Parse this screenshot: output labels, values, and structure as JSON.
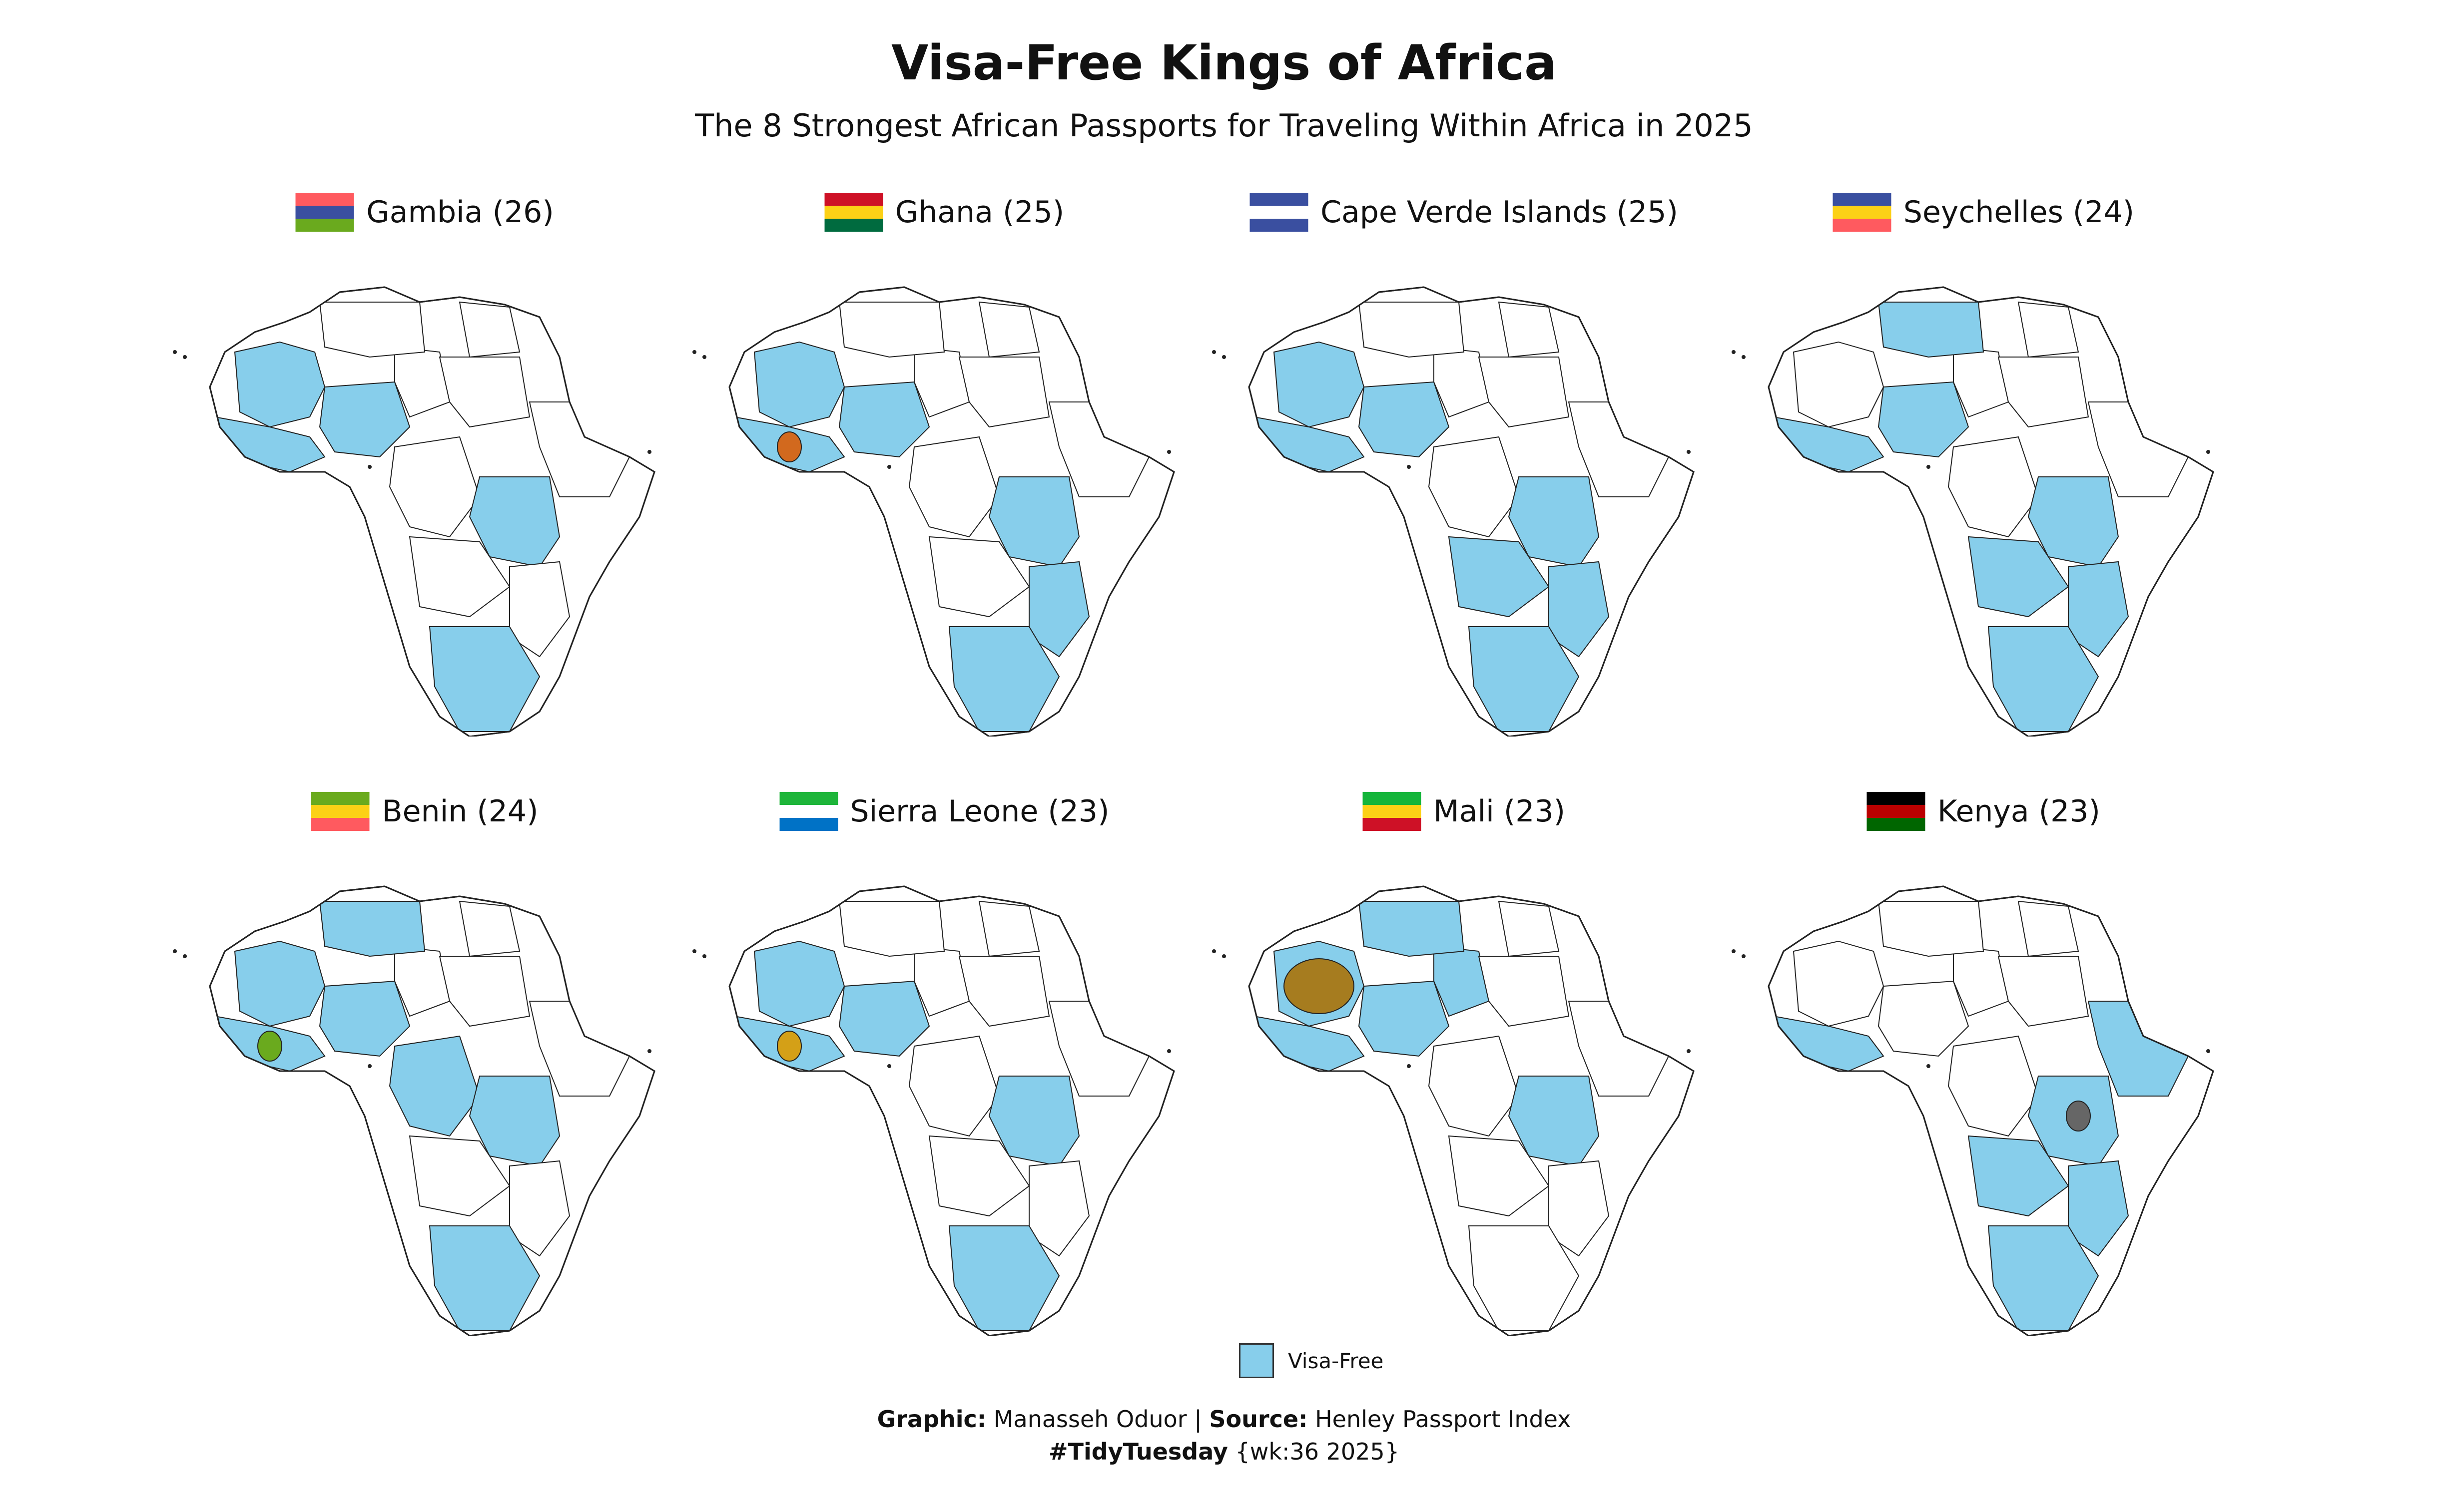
{
  "header": {
    "title": "Visa-Free Kings of Africa",
    "subtitle": "The 8 Strongest African Passports for Traveling Within Africa in 2025"
  },
  "colors": {
    "visa_free": "#87ceeb",
    "not_visa_free": "#ffffff",
    "border": "#222222"
  },
  "panels": [
    {
      "title": "Gambia (26)",
      "country": "Gambia",
      "count": 26,
      "home_color": "#87ceeb",
      "flag": [
        "#ff5a5f",
        "#3a4fa0",
        "#6aaa1e"
      ]
    },
    {
      "title": "Ghana (25)",
      "country": "Ghana",
      "count": 25,
      "home_color": "#d2691e",
      "flag": [
        "#ce1126",
        "#fcd116",
        "#006b3f"
      ]
    },
    {
      "title": "Cape Verde Islands (25)",
      "country": "Cape Verde Islands",
      "count": 25,
      "home_color": "#87ceeb",
      "flag": [
        "#3a4fa0",
        "#ffffff",
        "#3a4fa0"
      ]
    },
    {
      "title": "Seychelles (24)",
      "country": "Seychelles",
      "count": 24,
      "home_color": "#87ceeb",
      "flag": [
        "#3a4fa0",
        "#fcd116",
        "#ff5a5f"
      ]
    },
    {
      "title": "Benin (24)",
      "country": "Benin",
      "count": 24,
      "home_color": "#6aaa1e",
      "flag": [
        "#6aaa1e",
        "#fcd116",
        "#ff5a5f"
      ]
    },
    {
      "title": "Sierra Leone (23)",
      "country": "Sierra Leone",
      "count": 23,
      "home_color": "#d4a017",
      "flag": [
        "#1eb53a",
        "#ffffff",
        "#0072c6"
      ]
    },
    {
      "title": "Mali (23)",
      "country": "Mali",
      "count": 23,
      "home_color": "#a67c1f",
      "flag": [
        "#14b53a",
        "#fcd116",
        "#ce1126"
      ]
    },
    {
      "title": "Kenya (23)",
      "country": "Kenya",
      "count": 23,
      "home_color": "#666666",
      "flag": [
        "#000000",
        "#bb0000",
        "#006600"
      ]
    }
  ],
  "legend": {
    "label": "Visa-Free",
    "color": "#87ceeb"
  },
  "caption": {
    "graphic_label": "Graphic:",
    "graphic_value": "Manasseh Oduor",
    "separator": "|",
    "source_label": "Source:",
    "source_value": "Henley Passport Index",
    "hashtag": "#TidyTuesday",
    "week": "{wk:36 2025}"
  }
}
